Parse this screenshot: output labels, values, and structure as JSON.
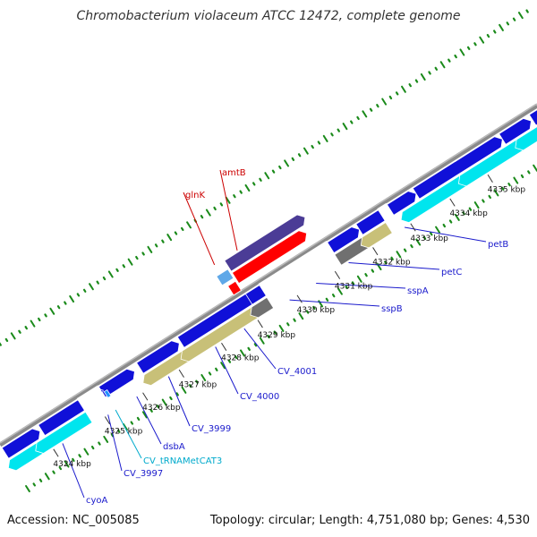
{
  "map": {
    "title": "Chromobacterium violaceum ATCC 12472, complete genome",
    "accession": "Accession: NC_005085",
    "summary": "Topology: circular; Length: 4,751,080 bp; Genes: 4,530"
  },
  "colors": {
    "forward_gene": "#1010d8",
    "reverse_cds": "#00e5ee",
    "trna": "#1e90ff",
    "rna_gene": "#5fa8e8",
    "red_gene": "#ff0000",
    "purple_gene": "#4b3c96",
    "khaki_gene": "#c8c078",
    "grey_gene": "#707070",
    "backbone": "#888888",
    "gc_ticks": "#1a8a1a",
    "label_blue": "#1a1acc",
    "label_red": "#cc0000",
    "label_cyan": "#00aacc"
  },
  "ticks": [
    {
      "label": "4324 kbp"
    },
    {
      "label": "4325 kbp"
    },
    {
      "label": "4326 kbp"
    },
    {
      "label": "4327 kbp"
    },
    {
      "label": "4328 kbp"
    },
    {
      "label": "4329 kbp"
    },
    {
      "label": "4330 kbp"
    },
    {
      "label": "4331 kbp"
    },
    {
      "label": "4332 kbp"
    },
    {
      "label": "4333 kbp"
    },
    {
      "label": "4334 kbp"
    },
    {
      "label": "4335 kbp"
    }
  ],
  "gene_labels": [
    {
      "text": "cyoA",
      "color": "label_blue"
    },
    {
      "text": "CV_3997",
      "color": "label_blue"
    },
    {
      "text": "CV_tRNAMetCAT3",
      "color": "label_cyan"
    },
    {
      "text": "dsbA",
      "color": "label_blue"
    },
    {
      "text": "CV_3999",
      "color": "label_blue"
    },
    {
      "text": "CV_4000",
      "color": "label_blue"
    },
    {
      "text": "CV_4001",
      "color": "label_blue"
    },
    {
      "text": "sspB",
      "color": "label_blue"
    },
    {
      "text": "sspA",
      "color": "label_blue"
    },
    {
      "text": "petC",
      "color": "label_blue"
    },
    {
      "text": "petB",
      "color": "label_blue"
    },
    {
      "text": "glnK",
      "color": "label_red"
    },
    {
      "text": "amtB",
      "color": "label_red"
    }
  ]
}
